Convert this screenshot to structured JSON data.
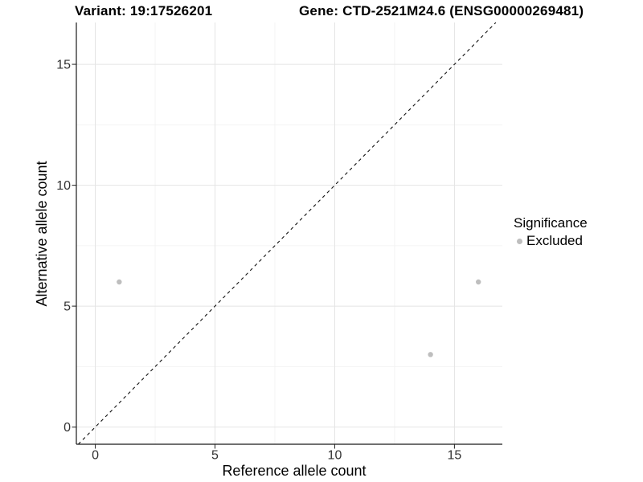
{
  "header": {
    "variant_title": "Variant: 19:17526201",
    "gene_title": "Gene: CTD-2521M24.6 (ENSG00000269481)"
  },
  "legend": {
    "title": "Significance",
    "items": [
      {
        "label": "Excluded",
        "color": "#bebebe"
      }
    ]
  },
  "chart_data": {
    "type": "scatter",
    "title": "",
    "xlabel": "Reference allele count",
    "ylabel": "Alternative allele count",
    "x_ticks": [
      0,
      5,
      10,
      15
    ],
    "y_ticks": [
      0,
      5,
      10,
      15
    ],
    "x_minor_ticks": [
      2.5,
      7.5,
      12.5
    ],
    "y_minor_ticks": [
      2.5,
      7.5,
      12.5
    ],
    "xlim": [
      -0.79,
      17.0
    ],
    "ylim": [
      -0.71,
      16.73
    ],
    "grid": true,
    "legend_position": "right",
    "series": [
      {
        "name": "Excluded",
        "color": "#bebebe",
        "points": [
          {
            "x": 1,
            "y": 6
          },
          {
            "x": 14,
            "y": 3
          },
          {
            "x": 16,
            "y": 6
          }
        ]
      }
    ],
    "reference_line": {
      "type": "identity",
      "slope": 1,
      "intercept": 0,
      "style": "dashed",
      "color": "#111111"
    }
  },
  "colors": {
    "background": "#ffffff",
    "grid_major": "#e4e4e4",
    "grid_minor": "#f1f1f1",
    "axis_line": "#1a1a1a",
    "tick_mark": "#333333",
    "tick_label": "#333333",
    "axis_title": "#000000",
    "point": "#bebebe"
  }
}
